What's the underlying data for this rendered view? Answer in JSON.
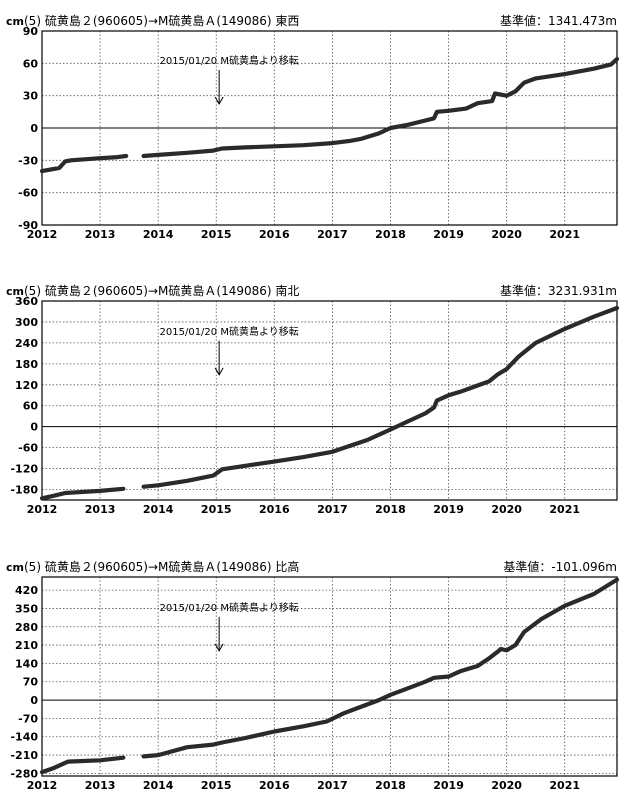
{
  "colors": {
    "series": "#2a2a2a",
    "grid": "#555555",
    "zero": "#000000"
  },
  "chart_data": [
    {
      "type": "scatter",
      "unit": "cm",
      "title_left": "(5)  硫黄島２(960605)→M硫黄島Ａ(149086)   東西",
      "title_right": "基準値：1341.473m",
      "ylim": [
        -90,
        90
      ],
      "yticks": [
        -90,
        -60,
        -30,
        0,
        30,
        60,
        90
      ],
      "xlim": [
        2012,
        2021.9
      ],
      "xticks": [
        2012,
        2013,
        2014,
        2015,
        2016,
        2017,
        2018,
        2019,
        2020,
        2021
      ],
      "grid": true,
      "annotation": {
        "text": "2015/01/20 M硫黄島より移転",
        "x": 2015.05
      },
      "series": [
        {
          "x": [
            2012.0,
            2012.3,
            2012.4,
            2012.5,
            2013.0,
            2013.3,
            2013.45,
            2013.6,
            2013.75,
            2014.0,
            2014.5,
            2014.95,
            2015.1,
            2015.5,
            2016.0,
            2016.5,
            2017.0,
            2017.3,
            2017.5,
            2017.8,
            2018.0,
            2018.3,
            2018.6,
            2018.75,
            2018.8,
            2019.0,
            2019.3,
            2019.5,
            2019.75,
            2019.8,
            2020.0,
            2020.15,
            2020.3,
            2020.5,
            2021.0,
            2021.5,
            2021.8,
            2021.9
          ],
          "y": [
            -40,
            -37,
            -31,
            -30,
            -28,
            -27,
            -26,
            null,
            -26,
            -25,
            -23,
            -21,
            -19,
            -18,
            -17,
            -16,
            -14,
            -12,
            -10,
            -5,
            0,
            3,
            7,
            9,
            15,
            16,
            18,
            23,
            25,
            32,
            30,
            34,
            42,
            46,
            50,
            55,
            59,
            64
          ]
        }
      ]
    },
    {
      "type": "scatter",
      "unit": "cm",
      "title_left": "(5)  硫黄島２(960605)→M硫黄島Ａ(149086)   南北",
      "title_right": "基準値：3231.931m",
      "ylim": [
        -210,
        360
      ],
      "yticks": [
        -180,
        -120,
        -60,
        0,
        60,
        120,
        180,
        240,
        300,
        360
      ],
      "xlim": [
        2012,
        2021.9
      ],
      "xticks": [
        2012,
        2013,
        2014,
        2015,
        2016,
        2017,
        2018,
        2019,
        2020,
        2021
      ],
      "grid": true,
      "annotation": {
        "text": "2015/01/20 M硫黄島より移転",
        "x": 2015.05
      },
      "series": [
        {
          "x": [
            2012.0,
            2012.2,
            2012.4,
            2012.6,
            2013.0,
            2013.4,
            2013.6,
            2013.75,
            2014.0,
            2014.5,
            2014.95,
            2015.1,
            2015.5,
            2016.0,
            2016.5,
            2017.0,
            2017.3,
            2017.6,
            2018.0,
            2018.3,
            2018.6,
            2018.75,
            2018.8,
            2019.0,
            2019.2,
            2019.5,
            2019.7,
            2019.85,
            2020.0,
            2020.2,
            2020.5,
            2021.0,
            2021.5,
            2021.9
          ],
          "y": [
            -205,
            -198,
            -190,
            -188,
            -184,
            -178,
            null,
            -172,
            -168,
            -155,
            -140,
            -122,
            -112,
            -100,
            -87,
            -72,
            -55,
            -38,
            -8,
            15,
            38,
            55,
            75,
            90,
            100,
            118,
            130,
            150,
            165,
            200,
            240,
            280,
            315,
            340
          ]
        }
      ]
    },
    {
      "type": "scatter",
      "unit": "cm",
      "title_left": "(5)  硫黄島２(960605)→M硫黄島Ａ(149086)   比高",
      "title_right": "基準値：-101.096m",
      "ylim": [
        -290,
        470
      ],
      "yticks": [
        -280,
        -210,
        -140,
        -70,
        0,
        70,
        140,
        210,
        280,
        350,
        420
      ],
      "xlim": [
        2012,
        2021.9
      ],
      "xticks": [
        2012,
        2013,
        2014,
        2015,
        2016,
        2017,
        2018,
        2019,
        2020,
        2021
      ],
      "grid": true,
      "annotation": {
        "text": "2015/01/20 M硫黄島より移転",
        "x": 2015.05
      },
      "series": [
        {
          "x": [
            2012.0,
            2012.2,
            2012.35,
            2012.45,
            2013.0,
            2013.4,
            2013.6,
            2013.75,
            2014.0,
            2014.5,
            2014.95,
            2015.1,
            2015.5,
            2016.0,
            2016.5,
            2016.9,
            2017.2,
            2017.5,
            2017.8,
            2018.0,
            2018.3,
            2018.6,
            2018.75,
            2019.0,
            2019.2,
            2019.5,
            2019.7,
            2019.85,
            2019.9,
            2020.0,
            2020.15,
            2020.3,
            2020.6,
            2021.0,
            2021.5,
            2021.9
          ],
          "y": [
            -275,
            -260,
            -245,
            -235,
            -230,
            -220,
            null,
            -215,
            -210,
            -180,
            -170,
            -162,
            -145,
            -120,
            -100,
            -82,
            -50,
            -25,
            0,
            20,
            45,
            70,
            85,
            90,
            110,
            130,
            160,
            185,
            195,
            190,
            210,
            260,
            310,
            360,
            405,
            460
          ]
        }
      ]
    }
  ]
}
